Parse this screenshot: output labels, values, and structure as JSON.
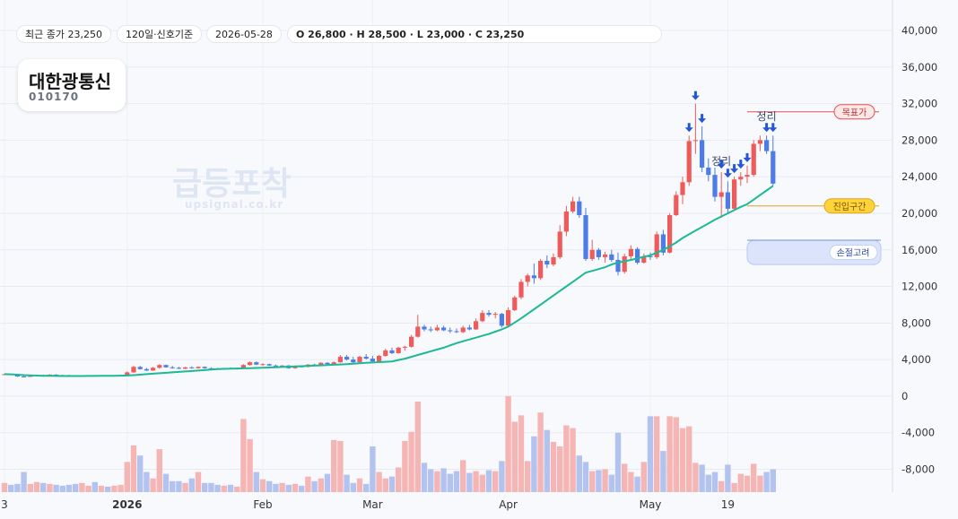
{
  "header": {
    "pills": [
      "최근 종가 23,250",
      "120일·신호기준",
      "2026-05-28",
      "O 26,800 · H 28,500 · L 23,000 · C 23,250"
    ],
    "name": "대한광통신",
    "code": "010170",
    "watermark": "급등포착",
    "watermark_url": "upsignal.co.kr"
  },
  "chart_data": {
    "type": "candlestick",
    "categories": [
      "3",
      null,
      null,
      null,
      null,
      null,
      null,
      null,
      null,
      null,
      null,
      null,
      null,
      null,
      null,
      null,
      null,
      null,
      null,
      "2026",
      null,
      null,
      null,
      null,
      null,
      null,
      null,
      null,
      null,
      null,
      null,
      null,
      null,
      null,
      null,
      null,
      null,
      null,
      null,
      null,
      "Feb",
      null,
      null,
      null,
      null,
      null,
      null,
      null,
      null,
      null,
      null,
      null,
      null,
      null,
      null,
      null,
      null,
      "Mar",
      null,
      null,
      null,
      null,
      null,
      null,
      null,
      null,
      null,
      null,
      null,
      null,
      null,
      null,
      null,
      null,
      null,
      null,
      null,
      null,
      "Apr",
      null,
      null,
      null,
      null,
      null,
      null,
      null,
      null,
      null,
      null,
      null,
      null,
      null,
      null,
      null,
      null,
      null,
      null,
      null,
      null,
      null,
      "May",
      null,
      null,
      null,
      null,
      null,
      null,
      null,
      null,
      null,
      null,
      null,
      "19",
      null,
      null,
      null,
      null,
      null,
      null,
      null
    ],
    "open": [
      2400,
      2400,
      2300,
      2150,
      2100,
      2250,
      2300,
      2250,
      2350,
      2300,
      2250,
      2200,
      2150,
      2200,
      2250,
      2200,
      2250,
      2200,
      2250,
      2300,
      2600,
      3200,
      2950,
      2800,
      3100,
      3400,
      3150,
      3100,
      3000,
      3150,
      3050,
      3200,
      3050,
      3000,
      2950,
      3050,
      3000,
      3050,
      3400,
      3700,
      3450,
      3500,
      3350,
      3300,
      3350,
      3050,
      3250,
      3200,
      3450,
      3400,
      3650,
      3500,
      3700,
      4300,
      4000,
      3700,
      4300,
      4100,
      3800,
      4400,
      5000,
      4700,
      5300,
      5400,
      6500,
      7600,
      7300,
      7200,
      7500,
      7200,
      7100,
      7000,
      7500,
      7300,
      8200,
      9100,
      8900,
      9000,
      7700,
      9400,
      10800,
      12500,
      13200,
      12900,
      14800,
      14400,
      15200,
      18000,
      20200,
      21300,
      19800,
      15000,
      16000,
      15200,
      15500,
      14900,
      13600,
      15300,
      16100,
      14600,
      15300,
      15200,
      17700,
      15700,
      19800,
      22000,
      23400,
      27900,
      28000,
      25000,
      24200,
      21800,
      22300,
      20500,
      23700,
      24000,
      24200,
      27600,
      28000,
      26800
    ],
    "high": [
      2450,
      2450,
      2350,
      2250,
      2300,
      2350,
      2350,
      2400,
      2400,
      2350,
      2350,
      2300,
      2250,
      2300,
      2300,
      2300,
      2300,
      2300,
      2350,
      2700,
      3300,
      3300,
      3100,
      3200,
      3500,
      3450,
      3300,
      3200,
      3200,
      3250,
      3250,
      3250,
      3150,
      3100,
      3100,
      3150,
      3100,
      3500,
      3800,
      3800,
      3600,
      3550,
      3450,
      3400,
      3400,
      3300,
      3350,
      3500,
      3550,
      3700,
      3700,
      3800,
      4500,
      4500,
      4300,
      4400,
      4600,
      4400,
      4500,
      5200,
      5300,
      5400,
      5500,
      6700,
      8900,
      7800,
      7600,
      7800,
      7700,
      7500,
      7400,
      7700,
      7800,
      8500,
      9400,
      9400,
      9200,
      9100,
      9700,
      11000,
      12800,
      13400,
      14500,
      15000,
      15400,
      15600,
      18700,
      20800,
      21800,
      21800,
      20600,
      17100,
      16200,
      15800,
      16000,
      15700,
      15600,
      16500,
      16300,
      15600,
      15700,
      18000,
      18200,
      20000,
      22400,
      24000,
      28500,
      32000,
      29500,
      26000,
      25000,
      24500,
      23500,
      24000,
      24500,
      25200,
      28000,
      28500,
      28500,
      28500
    ],
    "low": [
      2350,
      2300,
      2100,
      2050,
      2100,
      2200,
      2200,
      2200,
      2250,
      2200,
      2150,
      2100,
      2100,
      2150,
      2150,
      2150,
      2150,
      2150,
      2200,
      2250,
      2550,
      2900,
      2750,
      2750,
      3000,
      3100,
      3000,
      2950,
      2950,
      3000,
      3000,
      3000,
      2950,
      2900,
      2900,
      2950,
      2900,
      3000,
      3350,
      3400,
      3300,
      3300,
      3250,
      3200,
      3000,
      3000,
      3150,
      3150,
      3350,
      3350,
      3450,
      3450,
      3650,
      3900,
      3600,
      3650,
      4000,
      3700,
      3750,
      4300,
      4600,
      4650,
      5000,
      5300,
      6400,
      7100,
      7000,
      7100,
      7100,
      6900,
      6900,
      6900,
      7200,
      7250,
      8100,
      8700,
      8500,
      7500,
      7600,
      9300,
      10600,
      12000,
      12300,
      12700,
      14000,
      14200,
      15000,
      17500,
      20000,
      19500,
      14800,
      14800,
      14900,
      14600,
      14700,
      13200,
      13400,
      15000,
      14400,
      14500,
      14900,
      15000,
      15400,
      15600,
      19700,
      21000,
      23000,
      26500,
      24500,
      23500,
      21300,
      19500,
      20000,
      20300,
      23000,
      23300,
      24000,
      26800,
      26500,
      23000
    ],
    "close": [
      2400,
      2350,
      2150,
      2100,
      2250,
      2300,
      2250,
      2350,
      2300,
      2250,
      2200,
      2150,
      2200,
      2250,
      2200,
      2250,
      2200,
      2250,
      2300,
      2600,
      3200,
      2950,
      2800,
      3100,
      3400,
      3150,
      3100,
      3000,
      3150,
      3050,
      3200,
      3050,
      3000,
      2950,
      3050,
      3000,
      3050,
      3400,
      3700,
      3450,
      3500,
      3350,
      3300,
      3350,
      3050,
      3250,
      3200,
      3450,
      3400,
      3650,
      3500,
      3700,
      4300,
      4000,
      3700,
      4300,
      4100,
      3800,
      4400,
      5000,
      4700,
      5300,
      5400,
      6500,
      7600,
      7300,
      7200,
      7500,
      7200,
      7100,
      7000,
      7500,
      7300,
      8200,
      9100,
      8900,
      9000,
      7700,
      9400,
      10800,
      12500,
      13200,
      12900,
      14800,
      14400,
      15200,
      18000,
      20200,
      21300,
      19800,
      15000,
      16000,
      15200,
      15500,
      14900,
      13600,
      15300,
      16100,
      14600,
      15300,
      15200,
      17700,
      15700,
      19800,
      22000,
      23400,
      27900,
      28000,
      25000,
      24200,
      21800,
      22300,
      20500,
      23700,
      24000,
      24200,
      27600,
      28000,
      26800,
      23250
    ],
    "volume": [
      -9500,
      -9700,
      -9600,
      -8300,
      -9600,
      -9400,
      -9500,
      -9600,
      -9700,
      -9800,
      -9700,
      -9600,
      -9500,
      -9800,
      -9400,
      -9800,
      -9900,
      -9800,
      -9700,
      -7200,
      -5400,
      -6500,
      -8300,
      -9000,
      -5800,
      -8500,
      -9300,
      -9300,
      -9500,
      -9000,
      -8300,
      -9500,
      -9500,
      -9700,
      -9800,
      -9700,
      -9900,
      -2500,
      -4700,
      -8300,
      -9100,
      -9300,
      -9600,
      -9500,
      -9700,
      -9600,
      -9800,
      -8800,
      -9300,
      -9000,
      -8500,
      -4800,
      -4900,
      -8600,
      -9500,
      -9000,
      -9600,
      -5500,
      -8300,
      -9000,
      -8800,
      -7800,
      -4900,
      -3900,
      -600,
      -7300,
      -8000,
      -8200,
      -7900,
      -8500,
      -8200,
      -7000,
      -8400,
      -8200,
      -8600,
      -8100,
      -8200,
      -7100,
      0,
      -2800,
      -2100,
      -7100,
      -4400,
      -1800,
      -3700,
      -5000,
      -5500,
      -3200,
      -3500,
      -6500,
      -7200,
      -8200,
      -8100,
      -8000,
      -8600,
      -4000,
      -7400,
      -8300,
      -8800,
      -7200,
      -2200,
      -2200,
      -6000,
      -2200,
      -2300,
      -3500,
      -3300,
      -7300,
      -7500,
      -8600,
      -8300,
      -9300,
      -7500,
      -9500,
      -8500,
      -8700,
      -7400,
      -8700,
      -8300,
      -8000
    ],
    "ma": [
      2400,
      2380,
      2350,
      2300,
      2280,
      2250,
      2230,
      2220,
      2210,
      2200,
      2200,
      2200,
      2200,
      2210,
      2210,
      2220,
      2220,
      2230,
      2240,
      2260,
      2300,
      2350,
      2400,
      2450,
      2500,
      2550,
      2600,
      2650,
      2700,
      2750,
      2800,
      2850,
      2900,
      2950,
      2980,
      3000,
      3020,
      3040,
      3060,
      3080,
      3100,
      3130,
      3160,
      3190,
      3220,
      3250,
      3280,
      3310,
      3340,
      3370,
      3400,
      3430,
      3460,
      3500,
      3540,
      3600,
      3640,
      3680,
      3720,
      3760,
      3800,
      3950,
      4100,
      4300,
      4500,
      4700,
      4900,
      5100,
      5300,
      5550,
      5800,
      6000,
      6200,
      6400,
      6600,
      6800,
      7050,
      7300,
      7600,
      8050,
      8500,
      9000,
      9500,
      10000,
      10500,
      11000,
      11500,
      12000,
      12500,
      13000,
      13500,
      13700,
      13900,
      14100,
      14400,
      14600,
      14750,
      14900,
      15050,
      15250,
      15400,
      15700,
      16000,
      16400,
      16800,
      17300,
      17700,
      18100,
      18500,
      18900,
      19300,
      19650,
      20000,
      20350,
      20700,
      21000,
      21500,
      22000,
      22500,
      23000
    ],
    "up_color": "#ef5b5b",
    "down_color": "#4d7be8",
    "up_volume_color": "#f5b5b5",
    "down_volume_color": "#b3c3f0",
    "ma_color": "#1db896",
    "signals": [
      106,
      107,
      108,
      111,
      112,
      113,
      114,
      115,
      118,
      119
    ],
    "signal_color": "#2456d6",
    "notes": [
      {
        "text": "정리",
        "index": 111,
        "value": 25300
      },
      {
        "text": "정리",
        "index": 118,
        "value": 30200
      }
    ],
    "levels": [
      {
        "label": "목표가",
        "value": 31100,
        "color": "#e05252"
      },
      {
        "label": "진입구간",
        "value": 20800,
        "color": "#e0a41c"
      },
      {
        "label": "손절고려",
        "range": [
          14400,
          17050
        ],
        "color": "#6f8fe6"
      }
    ],
    "ylim": [
      -10500,
      42500
    ],
    "yticks": [
      {
        "value": 40000,
        "label": "40,000"
      },
      {
        "value": 36000,
        "label": "36,000"
      },
      {
        "value": 32000,
        "label": "32,000"
      },
      {
        "value": 28000,
        "label": "28,000"
      },
      {
        "value": 24000,
        "label": "24,000"
      },
      {
        "value": 20000,
        "label": "20,000"
      },
      {
        "value": 16000,
        "label": "16,000"
      },
      {
        "value": 12000,
        "label": "12,000"
      },
      {
        "value": 8000,
        "label": "8,000"
      },
      {
        "value": 4000,
        "label": "4,000"
      },
      0,
      {
        "value": -4000,
        "label": "-4,000"
      },
      {
        "value": -8000,
        "label": "-8,000"
      }
    ],
    "grid": true
  }
}
